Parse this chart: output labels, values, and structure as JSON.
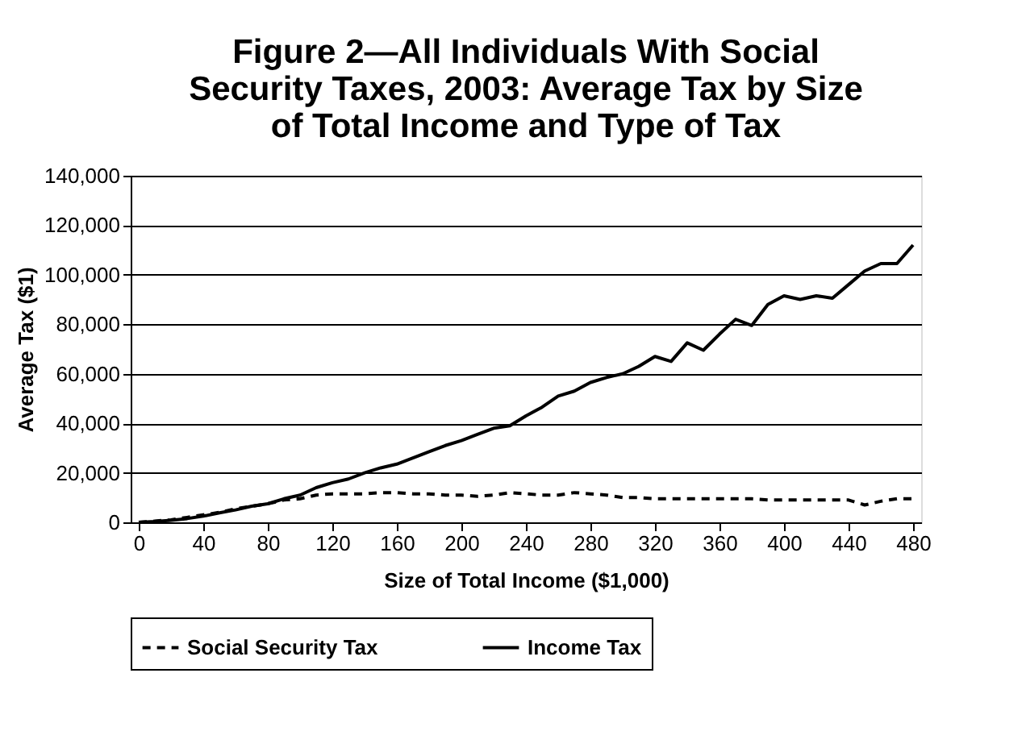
{
  "chart_data": {
    "type": "line",
    "title": "Figure 2—All Individuals With Social\nSecurity Taxes, 2003:  Average Tax by Size\nof Total Income and Type of Tax",
    "xlabel": "Size of Total Income ($1,000)",
    "ylabel": "Average Tax ($1)",
    "x": [
      0,
      10,
      20,
      30,
      40,
      50,
      60,
      70,
      80,
      90,
      100,
      110,
      120,
      130,
      140,
      150,
      160,
      170,
      180,
      190,
      200,
      210,
      220,
      230,
      240,
      250,
      260,
      270,
      280,
      290,
      300,
      310,
      320,
      330,
      340,
      350,
      360,
      370,
      380,
      390,
      400,
      410,
      420,
      430,
      440,
      450,
      460,
      470,
      480
    ],
    "series": [
      {
        "name": "Social Security Tax",
        "color": "#000000",
        "line_style": "dashed",
        "values": [
          0,
          500,
          1000,
          2000,
          3000,
          4000,
          5500,
          6500,
          7500,
          9000,
          9500,
          11000,
          11500,
          11500,
          11500,
          12000,
          12000,
          11500,
          11500,
          11000,
          11000,
          10500,
          11000,
          12000,
          11500,
          11000,
          11000,
          12000,
          11500,
          11000,
          10000,
          10000,
          9500,
          9500,
          9500,
          9500,
          9500,
          9500,
          9500,
          9000,
          9000,
          9000,
          9000,
          9000,
          9000,
          7000,
          8500,
          9500,
          9500
        ]
      },
      {
        "name": "Income Tax",
        "color": "#000000",
        "line_style": "solid",
        "values": [
          0,
          300,
          800,
          1500,
          2500,
          3800,
          5000,
          6500,
          7500,
          9500,
          11000,
          14000,
          16000,
          17500,
          20000,
          22000,
          23500,
          26000,
          28500,
          31000,
          33000,
          35500,
          38000,
          39000,
          43000,
          46500,
          51000,
          53000,
          56500,
          58500,
          60000,
          63000,
          67000,
          65000,
          72500,
          69500,
          76000,
          82000,
          79500,
          88000,
          91500,
          90000,
          91500,
          90500,
          96000,
          101500,
          104500,
          104500,
          112000
        ]
      }
    ],
    "xlim": [
      -5,
      485
    ],
    "xticks": [
      0,
      40,
      80,
      120,
      160,
      200,
      240,
      280,
      320,
      360,
      400,
      440,
      480
    ],
    "ylim": [
      0,
      140000
    ],
    "yticks": [
      0,
      {
        "value": 20000,
        "label": "20,000"
      },
      {
        "value": 40000,
        "label": "40,000"
      },
      {
        "value": 60000,
        "label": "60,000"
      },
      {
        "value": 80000,
        "label": "80,000"
      },
      {
        "value": 100000,
        "label": "100,000"
      },
      {
        "value": 120000,
        "label": "120,000"
      },
      {
        "value": 140000,
        "label": "140,000"
      }
    ],
    "grid": "y",
    "legend": "bottom",
    "marker": "none"
  }
}
